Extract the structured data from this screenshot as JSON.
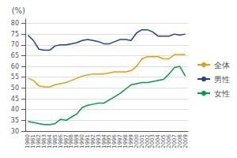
{
  "chart_data": {
    "type": "line",
    "y_label": "(%)",
    "categories": [
      1980,
      1981,
      1982,
      1983,
      1984,
      1985,
      1986,
      1987,
      1988,
      1989,
      1990,
      1991,
      1992,
      1993,
      1994,
      1995,
      1996,
      1997,
      1998,
      1999,
      2000,
      2001,
      2002,
      2003,
      2004,
      2005,
      2006,
      2007,
      2008,
      2009
    ],
    "series": [
      {
        "name": "全体",
        "color": "#e8a000",
        "values": [
          54.5,
          53.5,
          51.0,
          50.5,
          50.5,
          51.5,
          52.0,
          52.5,
          53.5,
          54.5,
          55.5,
          56.0,
          56.5,
          56.5,
          56.5,
          57.0,
          57.5,
          57.5,
          57.5,
          58.0,
          60.0,
          63.5,
          64.5,
          64.5,
          64.5,
          63.5,
          63.5,
          65.5,
          65.5,
          65.5
        ]
      },
      {
        "name": "男性",
        "color": "#2040a0",
        "values": [
          74.5,
          72.0,
          68.0,
          67.5,
          67.5,
          69.5,
          70.0,
          70.0,
          70.5,
          71.0,
          72.0,
          72.5,
          72.0,
          71.5,
          70.5,
          70.5,
          71.5,
          72.5,
          72.5,
          72.0,
          75.5,
          77.0,
          77.0,
          76.0,
          74.0,
          74.0,
          74.0,
          75.0,
          74.5,
          75.0
        ]
      },
      {
        "name": "女性",
        "color": "#00a040",
        "values": [
          34.5,
          34.0,
          33.5,
          33.0,
          33.0,
          33.5,
          35.5,
          35.0,
          36.5,
          38.0,
          41.0,
          42.0,
          42.5,
          43.0,
          43.0,
          44.5,
          46.0,
          47.5,
          49.5,
          51.5,
          52.0,
          52.5,
          52.5,
          53.0,
          53.5,
          54.0,
          56.5,
          59.5,
          60.0,
          55.5
        ]
      }
    ],
    "ylim": [
      30,
      82
    ],
    "yticks": [
      30,
      35,
      40,
      45,
      50,
      55,
      60,
      65,
      70,
      75,
      80
    ],
    "grid": true,
    "legend": "right"
  }
}
